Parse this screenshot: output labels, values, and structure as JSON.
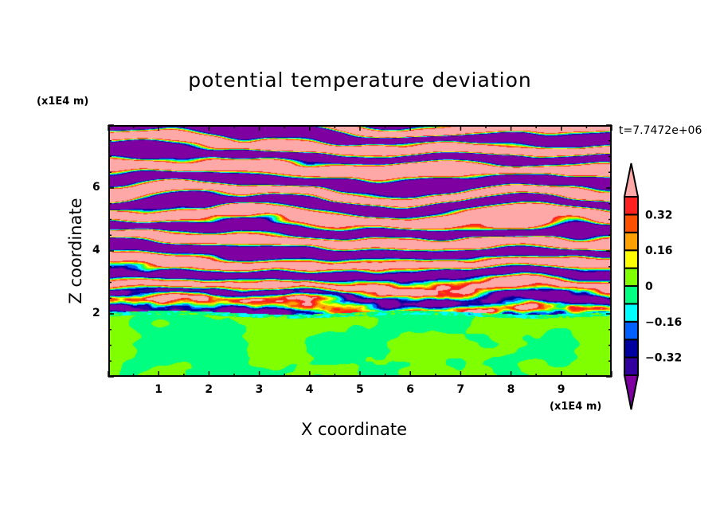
{
  "chart_data": {
    "type": "heatmap",
    "title": "potential temperature deviation",
    "xlabel": "X coordinate",
    "ylabel": "Z coordinate",
    "x_unit": "(x1E4 m)",
    "y_unit": "(x1E4 m)",
    "xlim": [
      0,
      10
    ],
    "ylim": [
      0,
      8
    ],
    "x_ticks": [
      "1",
      "2",
      "3",
      "4",
      "5",
      "6",
      "7",
      "8",
      "9"
    ],
    "y_ticks": [
      "2",
      "4",
      "6"
    ],
    "time_label": "t=7.7472e+06",
    "colorbar": {
      "levels": [
        -0.4,
        -0.32,
        -0.24,
        -0.16,
        -0.08,
        0,
        0.08,
        0.16,
        0.24,
        0.32,
        0.4
      ],
      "colors": [
        "#7f00a0",
        "#3300a0",
        "#0000a0",
        "#0060ff",
        "#00ffff",
        "#00ff80",
        "#80ff00",
        "#ffff00",
        "#ffa000",
        "#ff5000",
        "#ff2020",
        "#ffa8a8"
      ],
      "labels": [
        "0.32",
        "0.16",
        "0",
        "-0.16",
        "-0.32"
      ],
      "extend": "both"
    },
    "description_of_field": {
      "lower_layer_z": [
        0,
        2.1
      ],
      "lower_layer_range": [
        -0.08,
        0.08
      ],
      "upper_layer_z": [
        2.1,
        8
      ],
      "upper_layer_pattern": "alternating saturated bands above 0.40 and below -0.40"
    }
  }
}
